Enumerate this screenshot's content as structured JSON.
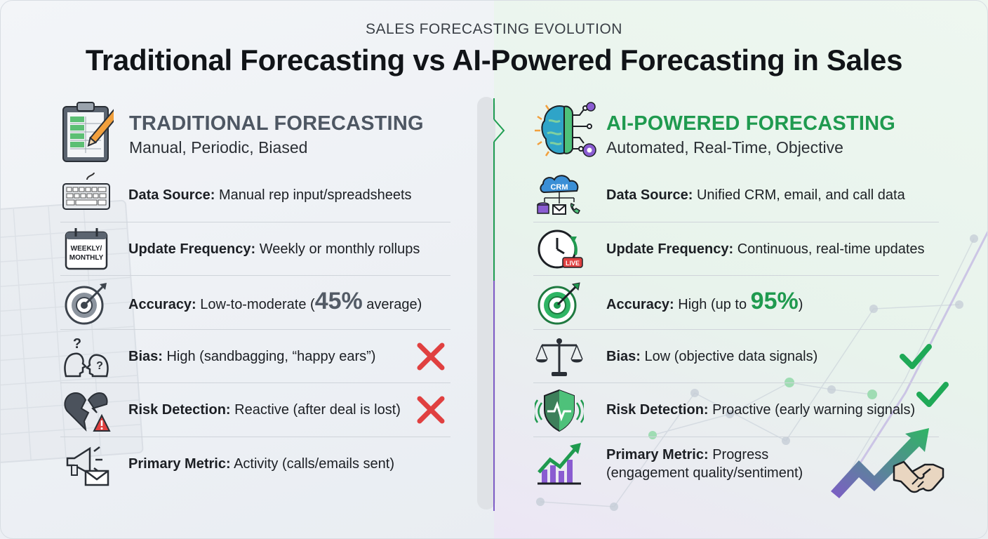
{
  "header": {
    "kicker": "SALES FORECASTING EVOLUTION",
    "title": "Traditional Forecasting vs AI-Powered Forecasting in Sales"
  },
  "colors": {
    "traditional_accent": "#4e5763",
    "ai_accent": "#1f9a4f",
    "cross": "#e04040",
    "check": "#1fa957",
    "purple": "#7e5cc7"
  },
  "traditional": {
    "title": "TRADITIONAL FORECASTING",
    "subtitle": "Manual, Periodic, Biased",
    "icon": "clipboard-spreadsheet-icon",
    "rows": [
      {
        "icon": "keyboard-icon",
        "label": "Data Source:",
        "value": "Manual rep input/spreadsheets"
      },
      {
        "icon": "calendar-icon",
        "icon_text": "WEEKLY/ MONTHLY",
        "label": "Update Frequency:",
        "value": "Weekly or monthly rollups"
      },
      {
        "icon": "target-icon",
        "label": "Accuracy:",
        "value_pre": "Low-to-moderate (",
        "highlight": "45%",
        "value_post": " average)"
      },
      {
        "icon": "confused-heads-icon",
        "label": "Bias:",
        "value": "High (sandbagging, “happy ears”)",
        "mark": "cross-icon"
      },
      {
        "icon": "broken-heart-warning-icon",
        "label": "Risk Detection:",
        "value": "Reactive (after deal is lost)",
        "mark": "cross-icon"
      },
      {
        "icon": "megaphone-email-icon",
        "label": "Primary Metric:",
        "value": "Activity (calls/emails sent)"
      }
    ]
  },
  "ai": {
    "title": "AI-POWERED FORECASTING",
    "subtitle": "Automated, Real-Time, Objective",
    "icon": "ai-brain-circuit-icon",
    "rows": [
      {
        "icon": "crm-cloud-icon",
        "icon_text": "CRM",
        "label": "Data Source:",
        "value": "Unified CRM, email, and call data"
      },
      {
        "icon": "live-clock-icon",
        "icon_text": "LIVE",
        "label": "Update Frequency:",
        "value": "Continuous, real-time updates"
      },
      {
        "icon": "target-icon",
        "label": "Accuracy:",
        "value_pre": "High (up to ",
        "highlight": "95%",
        "value_post": ")"
      },
      {
        "icon": "balance-scale-icon",
        "label": "Bias:",
        "value": "Low (objective data signals)",
        "mark": "check-icon"
      },
      {
        "icon": "shield-pulse-icon",
        "label": "Risk Detection:",
        "value": "Proactive (early warning signals)",
        "mark": "check-icon"
      },
      {
        "icon": "growth-chart-icon",
        "label": "Primary Metric:",
        "value": "Progress",
        "value_line2": "(engagement quality/sentiment)"
      }
    ]
  },
  "decor": {
    "handshake_icon": "handshake-icon",
    "trend_arrow_icon": "trend-arrow-icon"
  }
}
